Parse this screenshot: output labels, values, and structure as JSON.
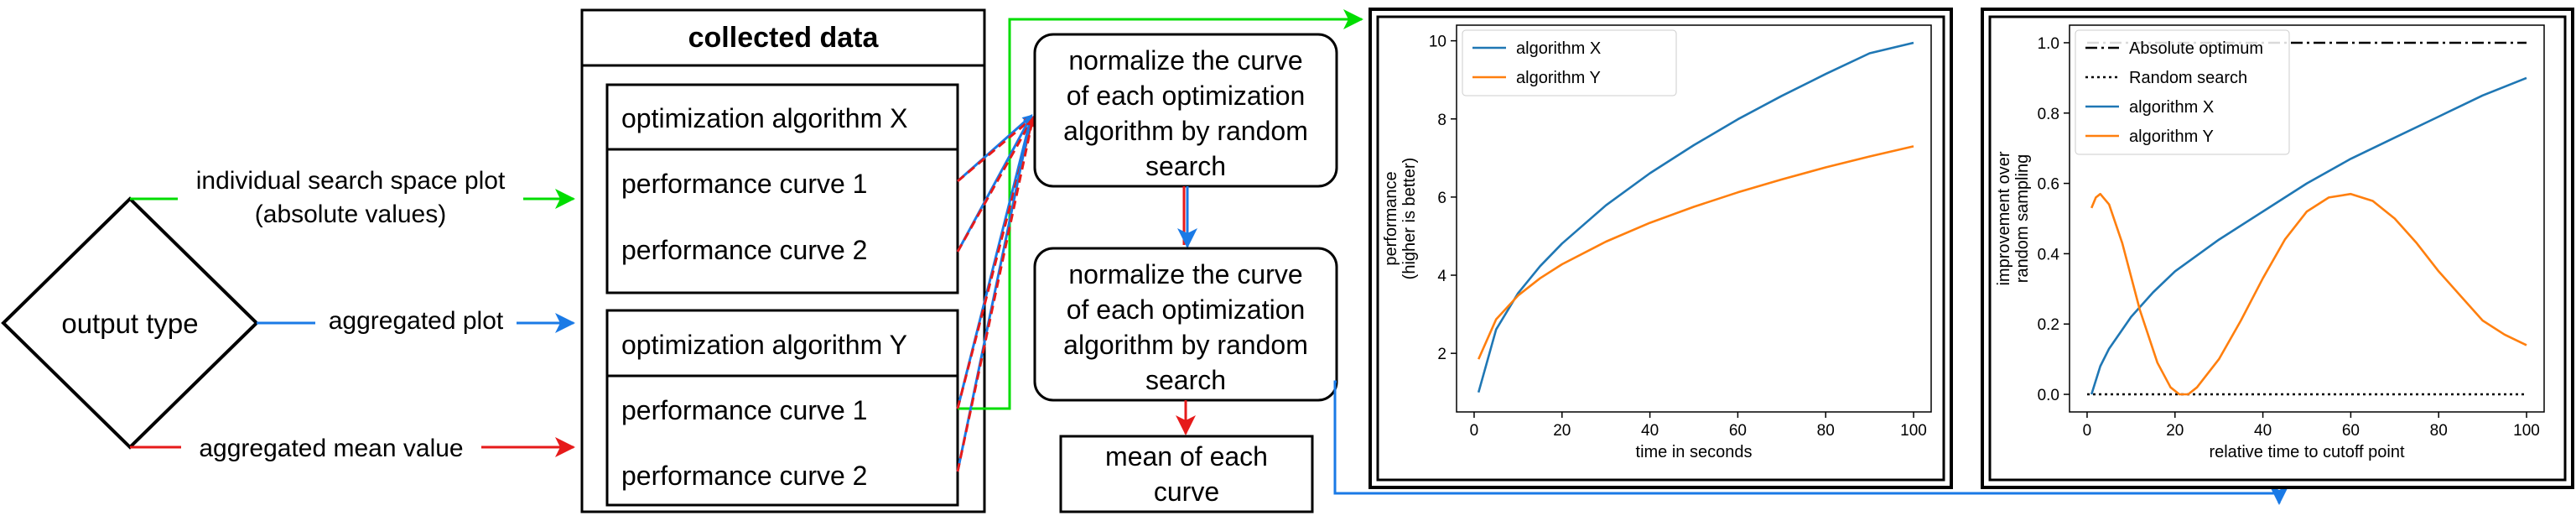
{
  "flow": {
    "decision_label": "output type",
    "edge_labels": {
      "individual_line1": "individual search space plot",
      "individual_line2": "(absolute values)",
      "aggregated_plot": "aggregated plot",
      "aggregated_mean": "aggregated mean value"
    },
    "collected_data": {
      "title": "collected data",
      "groups": [
        {
          "header": "optimization algorithm X",
          "curves": [
            "performance curve 1",
            "performance curve 2"
          ]
        },
        {
          "header": "optimization algorithm Y",
          "curves": [
            "performance curve 1",
            "performance curve 2"
          ]
        }
      ]
    },
    "process_boxes": [
      {
        "lines": [
          "normalize the curve",
          "of each optimization",
          "algorithm by random",
          "search"
        ]
      },
      {
        "lines": [
          "normalize the curve",
          "of each optimization",
          "algorithm by random",
          "search"
        ]
      }
    ],
    "mean_box": {
      "lines": [
        "mean of each",
        "curve"
      ]
    },
    "colors": {
      "individual": "#00dd00",
      "aggregated_plot": "#1a7ae6",
      "aggregated_mean": "#e61a1a"
    }
  },
  "chart_data": [
    {
      "type": "line",
      "xlabel": "time in seconds",
      "ylabel": [
        "performance",
        "(higher is better)"
      ],
      "xlim": [
        -4,
        104
      ],
      "ylim": [
        0.5,
        10.4
      ],
      "xticks": [
        0,
        20,
        40,
        60,
        80,
        100
      ],
      "yticks": [
        2,
        4,
        6,
        8,
        10
      ],
      "legend_position": "upper-left",
      "series": [
        {
          "name": "algorithm X",
          "color": "#1f77b4",
          "x": [
            1,
            5,
            10,
            15,
            20,
            30,
            40,
            50,
            60,
            70,
            80,
            90,
            100
          ],
          "y": [
            1.0,
            2.61,
            3.54,
            4.23,
            4.81,
            5.79,
            6.61,
            7.33,
            7.99,
            8.59,
            9.15,
            9.68,
            9.95
          ]
        },
        {
          "name": "algorithm Y",
          "color": "#ff7f0e",
          "x": [
            1,
            5,
            10,
            15,
            20,
            30,
            40,
            50,
            60,
            70,
            80,
            90,
            100
          ],
          "y": [
            1.85,
            2.87,
            3.48,
            3.92,
            4.28,
            4.86,
            5.34,
            5.75,
            6.12,
            6.45,
            6.76,
            7.04,
            7.3
          ]
        }
      ]
    },
    {
      "type": "line",
      "xlabel": "relative time to cutoff point",
      "ylabel": [
        "improvement over",
        "random sampling"
      ],
      "xlim": [
        -4,
        104
      ],
      "ylim": [
        -0.05,
        1.05
      ],
      "xticks": [
        0,
        20,
        40,
        60,
        80,
        100
      ],
      "yticks": [
        0.0,
        0.2,
        0.4,
        0.6,
        0.8,
        1.0
      ],
      "legend_position": "upper-left",
      "series": [
        {
          "name": "Absolute optimum",
          "color": "#000000",
          "dash": "dashdot",
          "x": [
            0,
            100
          ],
          "y": [
            1.0,
            1.0
          ]
        },
        {
          "name": "Random search",
          "color": "#000000",
          "dash": "dotted",
          "x": [
            0,
            100
          ],
          "y": [
            0.0,
            0.0
          ]
        },
        {
          "name": "algorithm X",
          "color": "#1f77b4",
          "x": [
            1,
            3,
            5,
            10,
            15,
            20,
            30,
            40,
            50,
            60,
            70,
            80,
            90,
            100
          ],
          "y": [
            0.0,
            0.08,
            0.13,
            0.22,
            0.29,
            0.35,
            0.44,
            0.52,
            0.6,
            0.67,
            0.73,
            0.79,
            0.85,
            0.9
          ]
        },
        {
          "name": "algorithm Y",
          "color": "#ff7f0e",
          "x": [
            1,
            2,
            3,
            5,
            8,
            12,
            16,
            19,
            21,
            23,
            25,
            30,
            35,
            40,
            45,
            50,
            55,
            60,
            65,
            70,
            75,
            80,
            85,
            90,
            95,
            100
          ],
          "y": [
            0.53,
            0.56,
            0.57,
            0.54,
            0.43,
            0.24,
            0.09,
            0.02,
            0.0,
            0.0,
            0.02,
            0.1,
            0.21,
            0.33,
            0.44,
            0.52,
            0.56,
            0.57,
            0.55,
            0.5,
            0.43,
            0.35,
            0.28,
            0.21,
            0.17,
            0.14
          ]
        }
      ]
    }
  ]
}
